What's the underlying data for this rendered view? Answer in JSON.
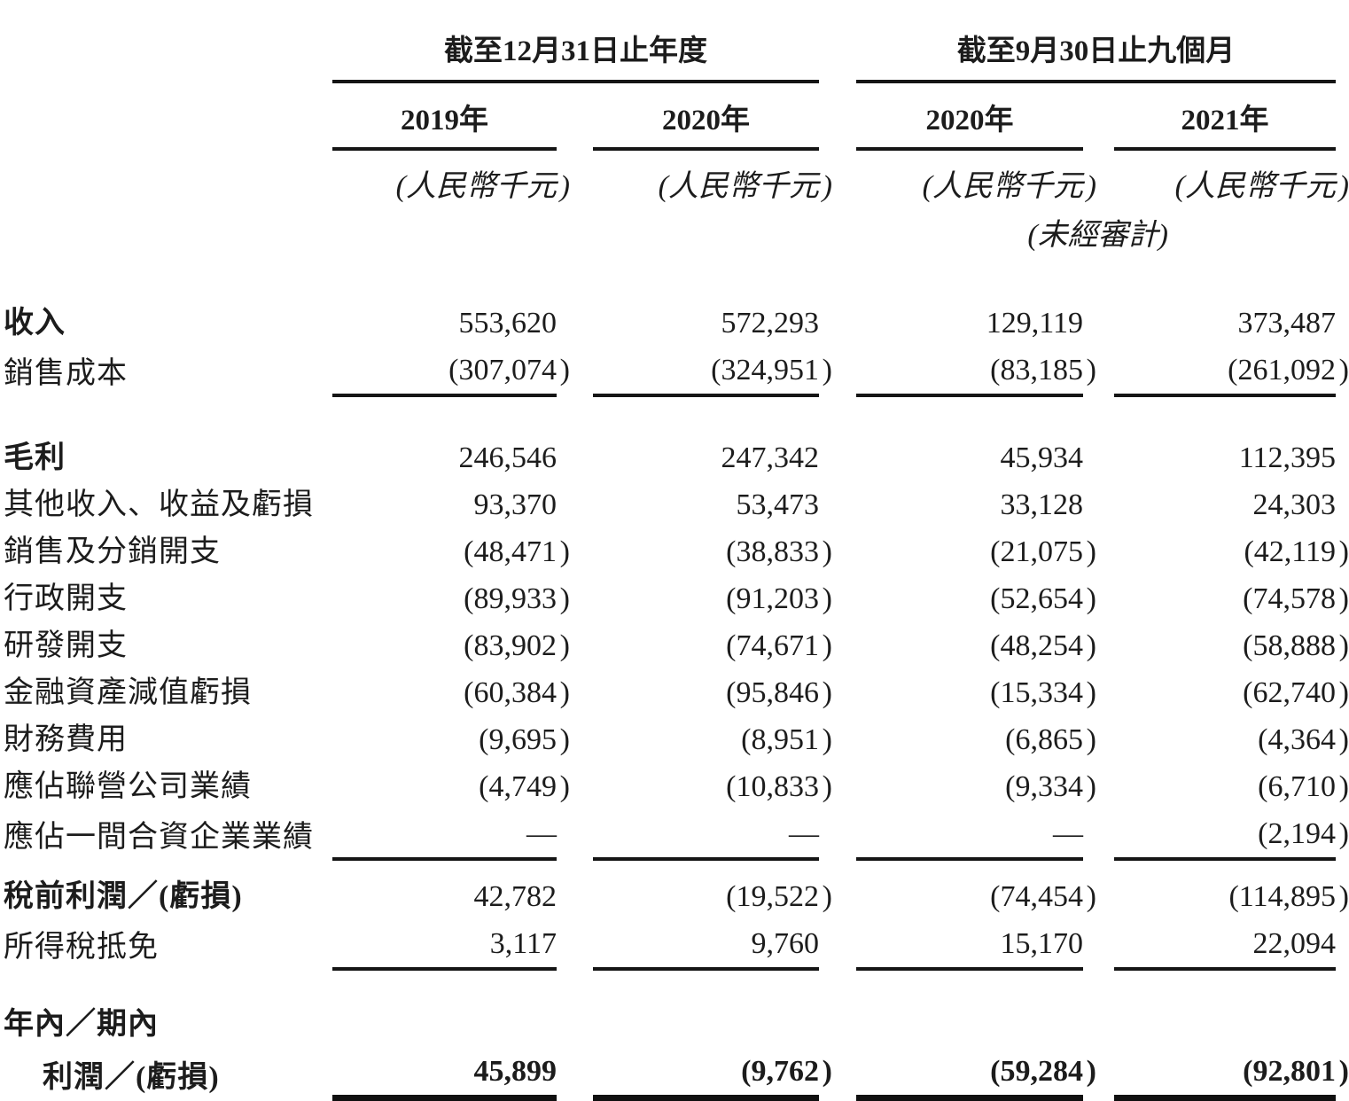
{
  "table": {
    "col_groups": [
      {
        "title": "截至12月31日止年度",
        "columns": [
          {
            "year": "2019年",
            "unit": "(人民幣千元)"
          },
          {
            "year": "2020年",
            "unit": "(人民幣千元)"
          }
        ]
      },
      {
        "title": "截至9月30日止九個月",
        "columns": [
          {
            "year": "2020年",
            "unit": "(人民幣千元)",
            "note": "(未經審計)"
          },
          {
            "year": "2021年",
            "unit": "(人民幣千元)"
          }
        ]
      }
    ],
    "rows": [
      {
        "label": "收入",
        "values": [
          "553,620",
          "572,293",
          "129,119",
          "373,487"
        ]
      },
      {
        "label": "銷售成本",
        "values": [
          "(307,074)",
          "(324,951)",
          "(83,185)",
          "(261,092)"
        ]
      },
      {
        "label": "毛利",
        "values": [
          "246,546",
          "247,342",
          "45,934",
          "112,395"
        ]
      },
      {
        "label": "其他收入、收益及虧損",
        "values": [
          "93,370",
          "53,473",
          "33,128",
          "24,303"
        ]
      },
      {
        "label": "銷售及分銷開支",
        "values": [
          "(48,471)",
          "(38,833)",
          "(21,075)",
          "(42,119)"
        ]
      },
      {
        "label": "行政開支",
        "values": [
          "(89,933)",
          "(91,203)",
          "(52,654)",
          "(74,578)"
        ]
      },
      {
        "label": "研發開支",
        "values": [
          "(83,902)",
          "(74,671)",
          "(48,254)",
          "(58,888)"
        ]
      },
      {
        "label": "金融資產減值虧損",
        "values": [
          "(60,384)",
          "(95,846)",
          "(15,334)",
          "(62,740)"
        ]
      },
      {
        "label": "財務費用",
        "values": [
          "(9,695)",
          "(8,951)",
          "(6,865)",
          "(4,364)"
        ]
      },
      {
        "label": "應佔聯營公司業績",
        "values": [
          "(4,749)",
          "(10,833)",
          "(9,334)",
          "(6,710)"
        ]
      },
      {
        "label": "應佔一間合資企業業績",
        "values": [
          "—",
          "—",
          "—",
          "(2,194)"
        ]
      },
      {
        "label": "稅前利潤／(虧損)",
        "values": [
          "42,782",
          "(19,522)",
          "(74,454)",
          "(114,895)"
        ]
      },
      {
        "label": "所得稅抵免",
        "values": [
          "3,117",
          "9,760",
          "15,170",
          "22,094"
        ]
      },
      {
        "label": "年內／期內"
      },
      {
        "label": "利潤／(虧損)",
        "values": [
          "45,899",
          "(9,762)",
          "(59,284)",
          "(92,801)"
        ]
      }
    ]
  }
}
